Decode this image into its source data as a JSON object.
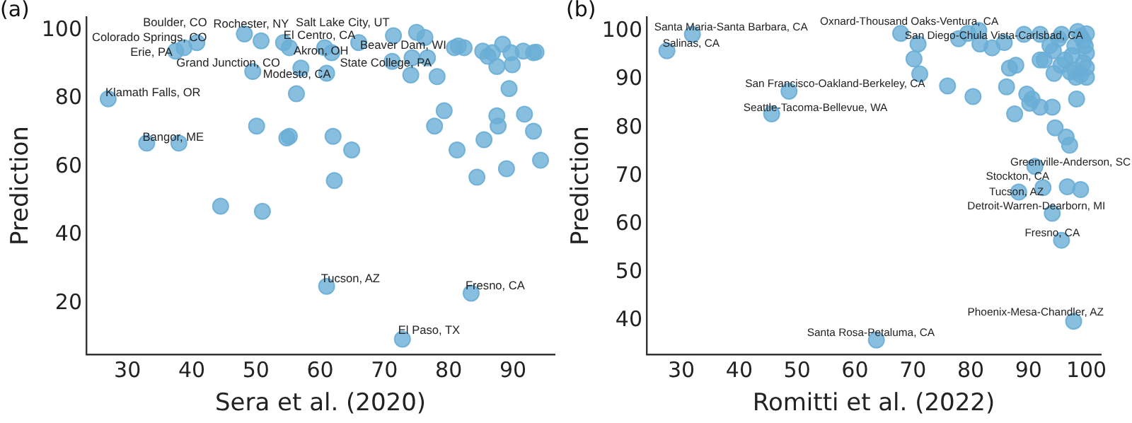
{
  "chart_data": [
    {
      "type": "scatter",
      "title": "(a)",
      "xlabel": "Sera et al. (2020)",
      "ylabel": "Prediction",
      "xlim": [
        23.6,
        96.5
      ],
      "ylim": [
        5,
        104
      ],
      "xticks": [
        30,
        40,
        50,
        60,
        70,
        80,
        90
      ],
      "yticks": [
        20,
        40,
        60,
        80,
        100
      ],
      "grid": false,
      "legend": false,
      "marker": "circle",
      "series": [
        {
          "color": "#6aaed6",
          "x": [
            27,
            33,
            38,
            37.5,
            38.8,
            40.8,
            48.2,
            50.8,
            49.5,
            50.1,
            51,
            44.5,
            54.8,
            54.3,
            55.2,
            57,
            56.3,
            55.2,
            60.7,
            61.8,
            61,
            62,
            64.9,
            62.2,
            66,
            61,
            71.4,
            71.2,
            75,
            76.3,
            74.3,
            76.7,
            74.1,
            78.2,
            79.3,
            77.8,
            72.8,
            80.9,
            81.5,
            82.4,
            81.3,
            83.5,
            85.3,
            86.1,
            86.8,
            87.5,
            88.4,
            89.7,
            89.9,
            89.4,
            87.5,
            87.7,
            85.5,
            84.4,
            89,
            91.6,
            93.2,
            93.6,
            91.8,
            93.2,
            94.3
          ],
          "values": [
            80,
            67,
            67,
            94,
            95,
            96.5,
            99,
            97,
            88,
            72,
            47,
            48.5,
            68.5,
            96.5,
            95,
            89,
            81.5,
            69,
            95,
            93.5,
            87.5,
            69,
            65,
            56,
            96.5,
            25,
            98.5,
            91,
            99.5,
            98,
            92,
            92,
            87,
            86.5,
            76.5,
            72,
            9.5,
            95,
            95.5,
            95,
            65,
            23,
            94,
            92.5,
            93.5,
            89.5,
            96,
            93.5,
            90,
            83,
            75,
            72,
            68,
            57,
            59.5,
            94,
            93.5,
            93.7,
            75.5,
            70.5,
            62
          ]
        }
      ],
      "annotations": [
        {
          "text": "Boulder, CO",
          "x": 40.8,
          "y": 96.5
        },
        {
          "text": "Rochester, NY",
          "x": 48.2,
          "y": 99
        },
        {
          "text": "Salt Lake City, UT",
          "x": 71.4,
          "y": 98.5
        },
        {
          "text": "Colorado Springs, CO",
          "x": 38.8,
          "y": 95
        },
        {
          "text": "El Centro, CA",
          "x": 54.3,
          "y": 96.5
        },
        {
          "text": "Erie, PA",
          "x": 37.5,
          "y": 94
        },
        {
          "text": "Akron, OH",
          "x": 61.8,
          "y": 93.5
        },
        {
          "text": "Beaver Dam, WI",
          "x": 66,
          "y": 96.5
        },
        {
          "text": "Grand Junction, CO",
          "x": 49.5,
          "y": 88
        },
        {
          "text": "State College, PA",
          "x": 74.3,
          "y": 92
        },
        {
          "text": "Modesto, CA",
          "x": 61,
          "y": 87.5
        },
        {
          "text": "Klamath Falls, OR",
          "x": 27,
          "y": 80
        },
        {
          "text": "Bangor, ME",
          "x": 33,
          "y": 67
        },
        {
          "text": "Tucson, AZ",
          "x": 61,
          "y": 25
        },
        {
          "text": "Fresno, CA",
          "x": 83.5,
          "y": 23
        },
        {
          "text": "El Paso, TX",
          "x": 72.8,
          "y": 9.5
        }
      ]
    },
    {
      "type": "scatter",
      "title": "(b)",
      "xlabel": "Romitti et al. (2022)",
      "ylabel": "Prediction",
      "xlim": [
        24,
        102.5
      ],
      "ylim": [
        33,
        103
      ],
      "xticks": [
        30,
        40,
        50,
        60,
        70,
        80,
        90,
        100
      ],
      "yticks": [
        40,
        50,
        60,
        70,
        80,
        90,
        100
      ],
      "grid": false,
      "legend": false,
      "marker": "circle",
      "series": [
        {
          "color": "#6aaed6",
          "x": [
            31.9,
            27.5,
            48.6,
            45.6,
            63.7,
            97.8,
            95.7,
            94.1,
            88.3,
            92.5,
            96.7,
            99,
            91.1,
            94.6,
            96.5,
            97.1,
            87.6,
            89.7,
            90.6,
            90.2,
            92,
            94.1,
            98.3,
            86.2,
            80.4,
            76,
            71.2,
            70.2,
            70.9,
            67.9,
            77.9,
            79.5,
            81.6,
            81.4,
            83.7,
            85.8,
            86.7,
            87.8,
            89.2,
            92,
            93.7,
            92,
            92.7,
            94.3,
            95.2,
            95.7,
            94.4,
            95.6,
            96.3,
            97.2,
            98.5,
            99,
            99.5,
            98,
            100,
            99.5,
            100,
            98,
            99,
            100,
            100,
            99.8,
            97.5,
            98.2
          ],
          "values": [
            99.4,
            96,
            87.6,
            82.9,
            36,
            39.9,
            56.7,
            62.3,
            66.7,
            67.6,
            67.8,
            67.2,
            72,
            80,
            78.1,
            76.4,
            82.9,
            87,
            86,
            85.1,
            84.3,
            84.3,
            86,
            88.5,
            86.5,
            88.7,
            91.2,
            94.3,
            97.4,
            99.6,
            98.5,
            99.6,
            97.4,
            100.2,
            96.6,
            97.7,
            92.4,
            93,
            99.4,
            99.4,
            97.1,
            94.1,
            94.1,
            96,
            98.5,
            99.4,
            91.3,
            93,
            94.1,
            91.6,
            100,
            99,
            98,
            97,
            95.5,
            93.5,
            92.5,
            92,
            91,
            90.5,
            99.5,
            97,
            95,
            90.5
          ]
        }
      ],
      "annotations": [
        {
          "text": "Santa Maria-Santa Barbara, CA",
          "x": 31.9,
          "y": 99.4
        },
        {
          "text": "Salinas, CA",
          "x": 27.5,
          "y": 96
        },
        {
          "text": "Oxnard-Thousand Oaks-Ventura, CA",
          "x": 67.9,
          "y": 99.6
        },
        {
          "text": "San Diego-Chula Vista-Carlsbad, CA",
          "x": 77.9,
          "y": 98.5
        },
        {
          "text": "San Francisco-Oakland-Berkeley, CA",
          "x": 48.6,
          "y": 87.6
        },
        {
          "text": "Seattle-Tacoma-Bellevue, WA",
          "x": 45.6,
          "y": 82.9
        },
        {
          "text": "Greenville-Anderson, SC",
          "x": 91.1,
          "y": 72
        },
        {
          "text": "Stockton, CA",
          "x": 99,
          "y": 67.2
        },
        {
          "text": "Tucson, AZ",
          "x": 88.3,
          "y": 66.7
        },
        {
          "text": "Detroit-Warren-Dearborn, MI",
          "x": 94.1,
          "y": 62.3
        },
        {
          "text": "Fresno, CA",
          "x": 95.7,
          "y": 56.7
        },
        {
          "text": "Phoenix-Mesa-Chandler, AZ",
          "x": 97.8,
          "y": 39.9
        },
        {
          "text": "Santa Rosa-Petaluma, CA",
          "x": 63.7,
          "y": 36
        }
      ]
    }
  ]
}
